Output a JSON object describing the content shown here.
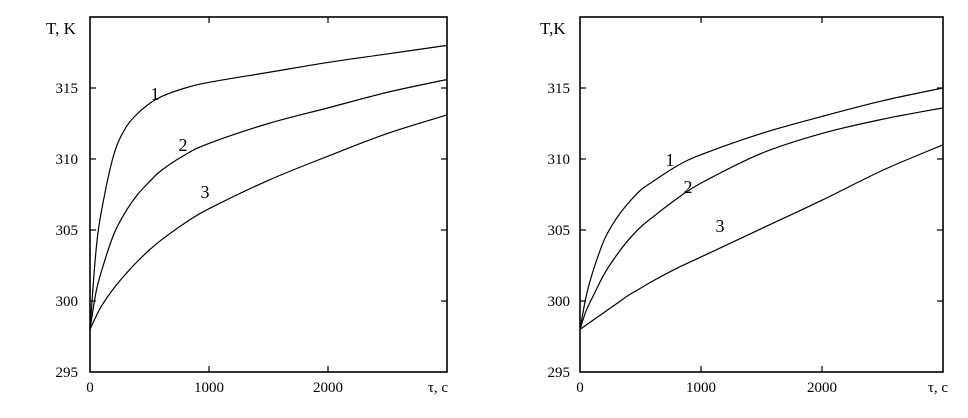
{
  "chart_data": [
    {
      "type": "line",
      "ylabel": "T, K",
      "xlabel": "τ, c",
      "xlim": [
        0,
        3000
      ],
      "ylim": [
        295,
        320
      ],
      "x_ticks": [
        0,
        1000,
        2000
      ],
      "y_ticks": [
        295,
        300,
        305,
        310,
        315
      ],
      "grid": false,
      "series": [
        {
          "name": "1",
          "x": [
            0,
            50,
            100,
            200,
            300,
            400,
            500,
            600,
            800,
            1000,
            1500,
            2000,
            2500,
            3000
          ],
          "values": [
            298,
            303.5,
            306.5,
            310.3,
            312.2,
            313.2,
            313.9,
            314.4,
            315.0,
            315.4,
            316.1,
            316.8,
            317.4,
            318.0
          ]
        },
        {
          "name": "2",
          "x": [
            0,
            50,
            100,
            200,
            300,
            400,
            500,
            600,
            800,
            1000,
            1500,
            2000,
            2500,
            3000
          ],
          "values": [
            298,
            300.6,
            302.2,
            304.7,
            306.3,
            307.5,
            308.4,
            309.2,
            310.3,
            311.1,
            312.5,
            313.6,
            314.7,
            315.6
          ]
        },
        {
          "name": "3",
          "x": [
            0,
            50,
            100,
            200,
            300,
            400,
            500,
            600,
            800,
            1000,
            1500,
            2000,
            2500,
            3000
          ],
          "values": [
            298,
            298.9,
            299.7,
            300.9,
            301.9,
            302.8,
            303.6,
            304.3,
            305.5,
            306.5,
            308.5,
            310.2,
            311.8,
            313.1
          ]
        }
      ],
      "curve_labels": [
        "1",
        "2",
        "3"
      ]
    },
    {
      "type": "line",
      "ylabel": "T,K",
      "xlabel": "τ, c",
      "xlim": [
        0,
        3000
      ],
      "ylim": [
        295,
        320
      ],
      "x_ticks": [
        0,
        1000,
        2000
      ],
      "y_ticks": [
        295,
        300,
        305,
        310,
        315
      ],
      "grid": false,
      "series": [
        {
          "name": "1",
          "x": [
            0,
            50,
            100,
            200,
            300,
            400,
            500,
            600,
            800,
            1000,
            1500,
            2000,
            2500,
            3000
          ],
          "values": [
            298,
            300.3,
            301.9,
            304.3,
            305.8,
            306.9,
            307.8,
            308.4,
            309.5,
            310.3,
            311.8,
            313.0,
            314.1,
            315.0
          ]
        },
        {
          "name": "2",
          "x": [
            0,
            50,
            100,
            200,
            300,
            400,
            500,
            600,
            800,
            1000,
            1500,
            2000,
            2500,
            3000
          ],
          "values": [
            298,
            299.3,
            300.2,
            301.9,
            303.2,
            304.3,
            305.2,
            305.9,
            307.2,
            308.3,
            310.4,
            311.8,
            312.8,
            313.6
          ]
        },
        {
          "name": "3",
          "x": [
            0,
            50,
            100,
            200,
            300,
            400,
            500,
            600,
            800,
            1000,
            1500,
            2000,
            2500,
            3000
          ],
          "values": [
            298,
            298.3,
            298.6,
            299.2,
            299.8,
            300.4,
            300.9,
            301.4,
            302.3,
            303.1,
            305.1,
            307.1,
            309.2,
            311.0
          ]
        }
      ],
      "curve_labels": [
        "1",
        "2",
        "3"
      ]
    }
  ]
}
